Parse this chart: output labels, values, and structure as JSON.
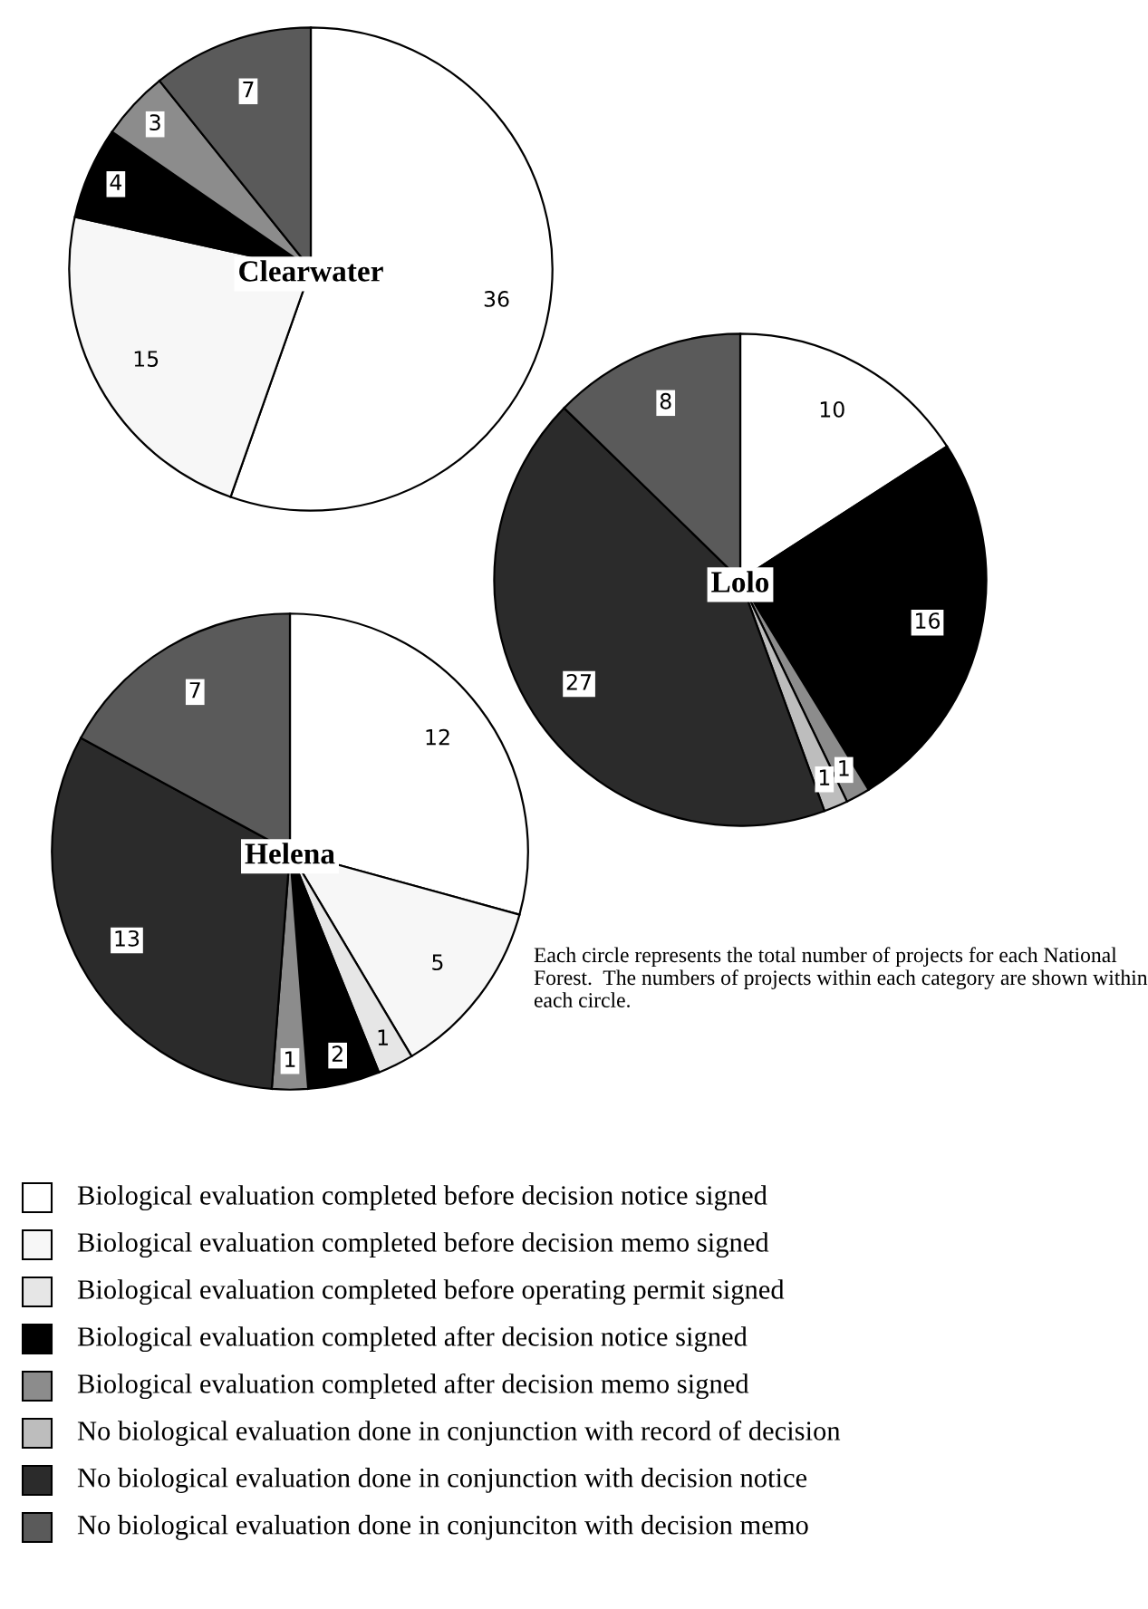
{
  "chart_data": [
    {
      "type": "pie",
      "title": "Clearwater",
      "categories": [
        "Biological evaluation completed before decision notice signed",
        "Biological evaluation completed before decision memo signed",
        "Biological evaluation completed before operating permit signed",
        "Biological evaluation completed after decision notice signed",
        "Biological evaluation completed after decision memo signed",
        "No biological evaluation done in conjunction with record of decision",
        "No biological evaluation done in conjunction with decision notice",
        "No biological evaluation done in conjunciton with decision memo"
      ],
      "values": [
        36,
        15,
        null,
        4,
        3,
        null,
        null,
        7
      ],
      "colors": [
        "#ffffff",
        "#f7f7f7",
        "#e6e6e6",
        "#000000",
        "#8c8c8c",
        "#bdbdbd",
        "#2b2b2b",
        "#5a5a5a"
      ],
      "data_labels": true,
      "legend": "bottom"
    },
    {
      "type": "pie",
      "title": "Lolo",
      "categories": [
        null,
        null,
        null,
        null,
        null,
        null
      ],
      "values": [
        10,
        16,
        1,
        1,
        27,
        8
      ],
      "colors": [
        "#ffffff",
        "#000000",
        "#8c8c8c",
        "#bdbdbd",
        "#2b2b2b",
        "#5a5a5a"
      ],
      "data_labels": true
    },
    {
      "type": "pie",
      "title": "Helena",
      "categories": [
        null,
        null,
        null,
        null,
        null,
        null,
        null
      ],
      "values": [
        12,
        5,
        1,
        2,
        1,
        13,
        7
      ],
      "colors": [
        "#ffffff",
        "#f7f7f7",
        "#e6e6e6",
        "#000000",
        "#8c8c8c",
        "#2b2b2b",
        "#5a5a5a"
      ],
      "data_labels": true,
      "annotations": [
        "Each circle represents the total number of projects for each National Forest.  The numbers of projects within each category are shown within each circle."
      ]
    }
  ]
}
